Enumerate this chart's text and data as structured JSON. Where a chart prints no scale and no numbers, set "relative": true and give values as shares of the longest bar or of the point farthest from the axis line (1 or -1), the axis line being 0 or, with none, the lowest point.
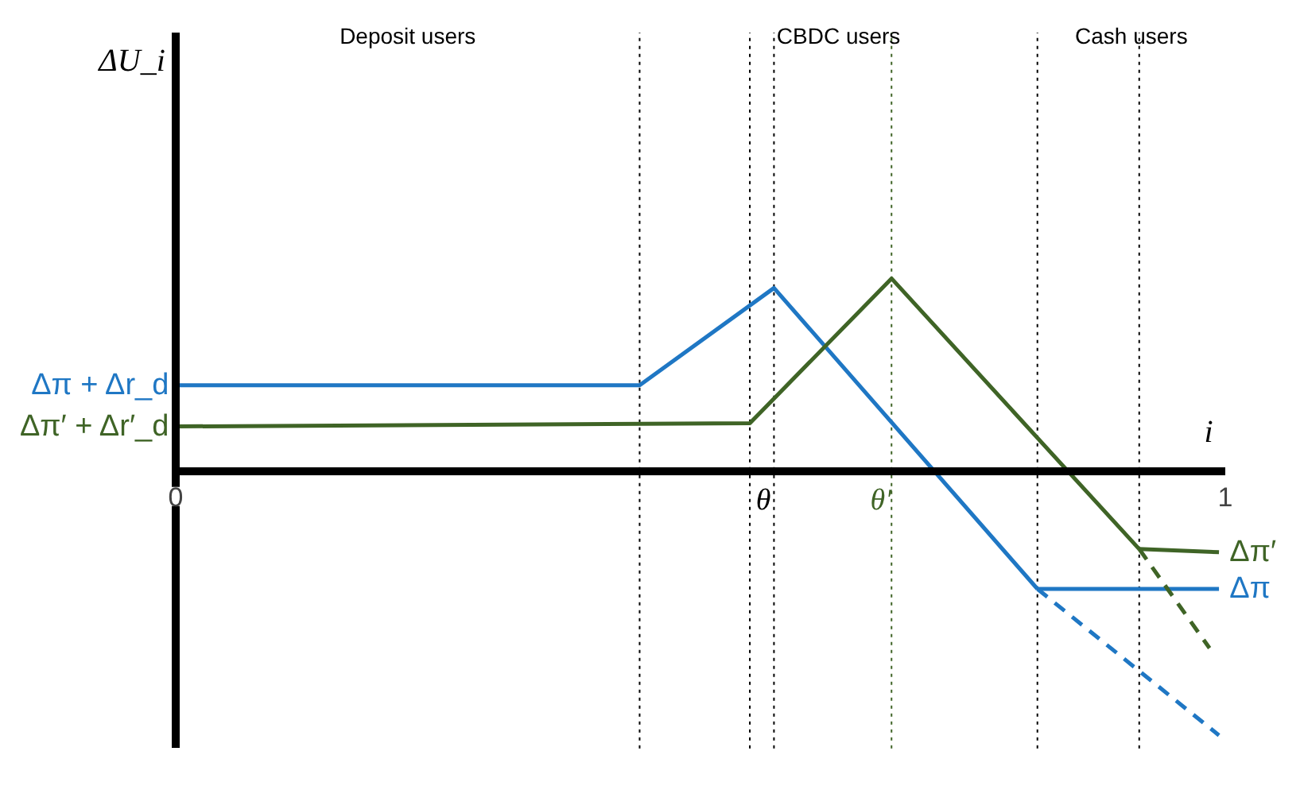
{
  "chart_data": {
    "type": "line",
    "relative": true,
    "xlabel": "i",
    "xlim": [
      0,
      1
    ],
    "xticks": [
      0,
      1
    ],
    "marker": "none",
    "series": [
      {
        "name": "Δπ + Δr_d",
        "color": "#1f77c4",
        "x": [
          0,
          0.442,
          0.57,
          0.821
        ],
        "values": [
          0.325,
          0.325,
          0.693,
          -0.446
        ]
      },
      {
        "name": "Δπ",
        "color": "#1f77c4",
        "x": [
          0.821,
          0.994
        ],
        "values": [
          -0.446,
          -0.446
        ]
      },
      {
        "color": "#1f77c4",
        "line_style": "dashed",
        "x": [
          0.821,
          0.994
        ],
        "values": [
          -0.446,
          -1
        ]
      },
      {
        "name": "Δπ′ + Δr′_d",
        "color": "#3f6426",
        "x": [
          0,
          0.547,
          0.682,
          0.918
        ],
        "values": [
          0.169,
          0.181,
          0.729,
          -0.295
        ]
      },
      {
        "name": "Δπ′",
        "color": "#3f6426",
        "x": [
          0.918,
          0.994
        ],
        "values": [
          -0.295,
          -0.307
        ]
      },
      {
        "color": "#3f6426",
        "line_style": "dashed",
        "x": [
          0.918,
          0.985
        ],
        "values": [
          -0.295,
          -0.67
        ]
      }
    ],
    "ref_lines": [
      {
        "axis": "x",
        "value": 0.442,
        "line_style": "dotted",
        "color": "#000000"
      },
      {
        "axis": "x",
        "value": 0.547,
        "line_style": "dotted",
        "color": "#000000"
      },
      {
        "axis": "x",
        "value": 0.57,
        "line_style": "dotted",
        "color": "#000000",
        "label": "θ"
      },
      {
        "axis": "x",
        "value": 0.682,
        "line_style": "dotted",
        "color": "#3f6426",
        "label": "θ′"
      },
      {
        "axis": "x",
        "value": 0.821,
        "line_style": "dotted",
        "color": "#000000"
      },
      {
        "axis": "x",
        "value": 0.918,
        "line_style": "dotted",
        "color": "#000000"
      }
    ],
    "annotations": [
      "ΔU_i",
      "Deposit users",
      "CBDC users",
      "Cash users"
    ]
  }
}
